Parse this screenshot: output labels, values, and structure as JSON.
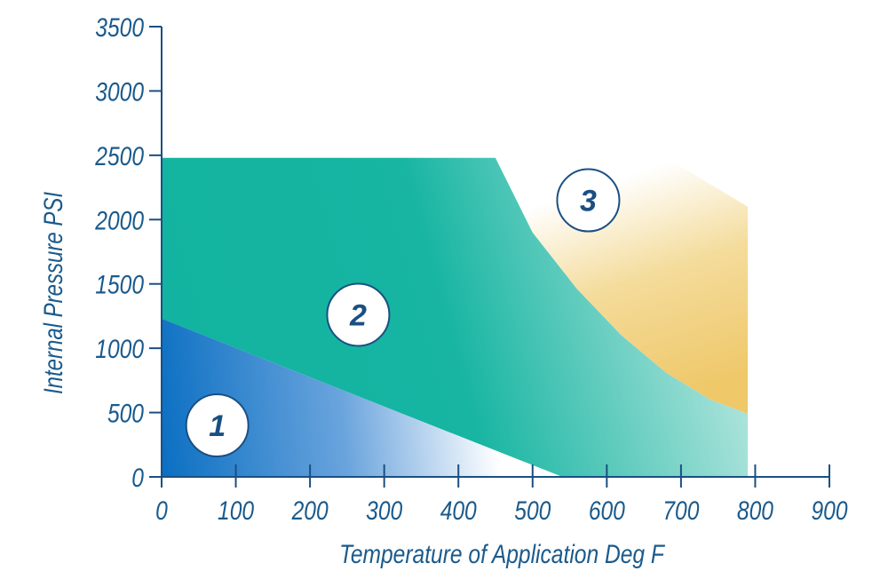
{
  "chart_data": {
    "type": "area",
    "title": "",
    "xlabel": "Temperature of Application Deg F",
    "ylabel": "Internal Pressure PSI",
    "xlim": [
      0,
      900
    ],
    "ylim": [
      0,
      3500
    ],
    "x_ticks": [
      "0",
      "100",
      "200",
      "300",
      "400",
      "500",
      "600",
      "700",
      "800",
      "900"
    ],
    "y_ticks": [
      "0",
      "500",
      "1000",
      "1500",
      "2000",
      "2500",
      "3000",
      "3500"
    ],
    "grid": false,
    "legend": "none",
    "zones": [
      {
        "label": "1",
        "color": "#0a6fc2",
        "label_at": [
          75,
          400
        ],
        "boundary": [
          [
            0,
            1230
          ],
          [
            540,
            0
          ],
          [
            0,
            0
          ]
        ]
      },
      {
        "label": "2",
        "color": "#12b3a0",
        "label_at": [
          265,
          1260
        ],
        "boundary": [
          [
            0,
            2480
          ],
          [
            450,
            2480
          ],
          [
            500,
            1900
          ],
          [
            560,
            1460
          ],
          [
            620,
            1100
          ],
          [
            680,
            810
          ],
          [
            740,
            600
          ],
          [
            790,
            490
          ],
          [
            790,
            0
          ],
          [
            540,
            0
          ],
          [
            0,
            1230
          ]
        ]
      },
      {
        "label": "3",
        "color": "#efc86a",
        "label_at": [
          575,
          2150
        ],
        "boundary": [
          [
            450,
            2480
          ],
          [
            680,
            2480
          ],
          [
            790,
            2100
          ],
          [
            790,
            490
          ],
          [
            740,
            600
          ],
          [
            680,
            810
          ],
          [
            620,
            1100
          ],
          [
            560,
            1460
          ],
          [
            500,
            1900
          ]
        ]
      }
    ]
  }
}
